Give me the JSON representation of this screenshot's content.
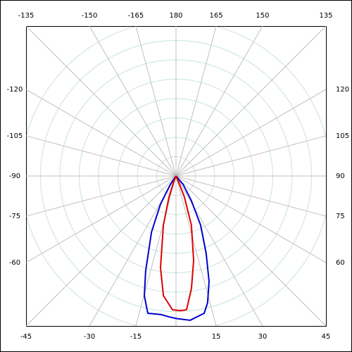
{
  "chart_data": {
    "type": "polar",
    "rlim": [
      0,
      100
    ],
    "rticks": [
      12.5,
      25,
      37.5,
      50,
      62.5,
      75,
      87.5,
      100
    ],
    "angle_ticks": [
      {
        "value": 0,
        "label": null
      },
      -15,
      -30,
      -45,
      -60,
      -75,
      -90,
      -105,
      -120,
      -135,
      -150,
      -165,
      180,
      165,
      150,
      135,
      120,
      105,
      90,
      75,
      60,
      45,
      30,
      15
    ],
    "grid": true,
    "series": [
      {
        "color": "#0000cc",
        "x": [
          -50,
          -34,
          -28.8,
          -23.6,
          -17.7,
          -14.8,
          -11.6,
          -6,
          -3,
          0,
          5.6,
          11.6,
          14,
          17.4,
          21.3,
          26.6,
          32,
          40,
          50
        ],
        "values": [
          0,
          6.4,
          20.9,
          39.5,
          64.5,
          80,
          90.5,
          90,
          91,
          92,
          93.6,
          90.5,
          84.3,
          71.4,
          53.6,
          35.5,
          18.6,
          7.1,
          0
        ]
      },
      {
        "color": "#dd0000",
        "x": [
          -28,
          -21,
          -18.4,
          -14.4,
          -9.6,
          -6,
          -1.5,
          2,
          4.5,
          7.8,
          11.8,
          17.4,
          21.8,
          22.6,
          28
        ],
        "values": [
          0,
          5,
          14.4,
          32.7,
          60,
          77.7,
          86.4,
          87,
          86.6,
          73.4,
          55.7,
          33.2,
          14.5,
          5.9,
          0
        ]
      }
    ]
  }
}
